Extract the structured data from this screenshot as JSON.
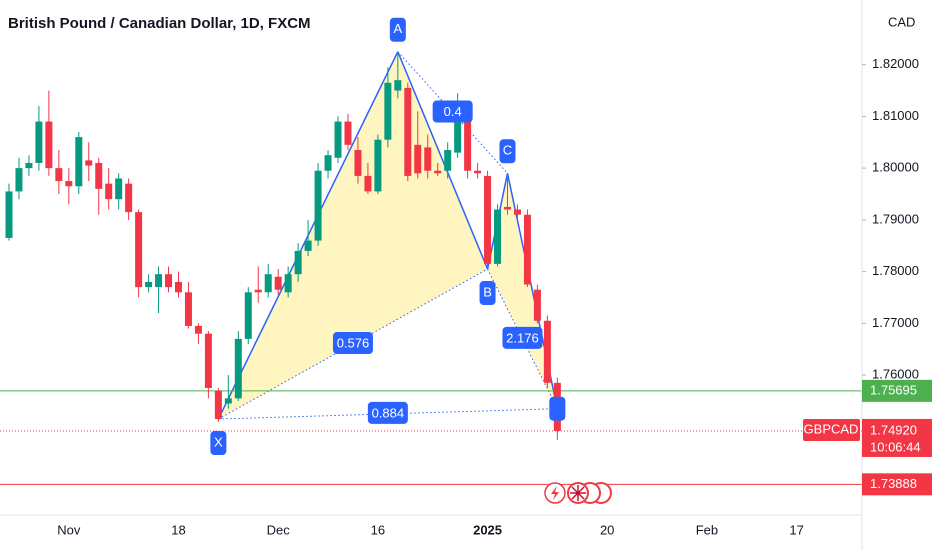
{
  "chart_data": {
    "type": "candlestick",
    "title": "British Pound / Canadian Dollar, 1D, FXCM",
    "currency": "CAD",
    "up_color": "#089981",
    "down_color": "#f23645",
    "categories": [
      null,
      null,
      null,
      null,
      null,
      null,
      "Nov",
      null,
      null,
      null,
      null,
      null,
      null,
      null,
      null,
      null,
      null,
      "18",
      null,
      null,
      null,
      null,
      null,
      null,
      null,
      null,
      null,
      "Dec",
      null,
      null,
      null,
      null,
      null,
      null,
      null,
      null,
      null,
      "16",
      null,
      null,
      null,
      null,
      null,
      null,
      null,
      null,
      null,
      null,
      "2025",
      null,
      null,
      null,
      null,
      null,
      null,
      null,
      null,
      null,
      null,
      null,
      "20",
      null,
      null,
      null,
      null,
      null,
      null,
      null,
      null,
      null,
      "Feb",
      null,
      null,
      null,
      null,
      null,
      null,
      null,
      null,
      "17"
    ],
    "open": [
      1.7865,
      1.7955,
      1.8,
      1.801,
      1.809,
      1.8,
      1.7975,
      1.7965,
      1.8015,
      1.801,
      1.797,
      1.794,
      1.797,
      1.7915,
      1.777,
      1.777,
      1.7795,
      1.778,
      1.776,
      1.7695,
      1.768,
      1.757,
      1.7545,
      1.7555,
      1.767,
      1.7765,
      1.776,
      1.779,
      1.776,
      1.7795,
      1.784,
      1.786,
      1.7995,
      1.802,
      1.809,
      1.8035,
      1.7985,
      1.7955,
      1.8055,
      1.815,
      1.8155,
      1.8045,
      1.804,
      1.7995,
      1.7995,
      1.803,
      1.8115,
      1.7995,
      1.7985,
      1.7815,
      1.7925,
      1.792,
      1.791,
      1.7765,
      1.7705,
      1.7585,
      null,
      null,
      null,
      null,
      null,
      null,
      null,
      null,
      null,
      null,
      null,
      null,
      null,
      null,
      null,
      null,
      null,
      null,
      null,
      null,
      null,
      null,
      null,
      null
    ],
    "high": [
      1.797,
      1.802,
      1.8025,
      1.812,
      1.815,
      1.8035,
      1.8,
      1.807,
      1.805,
      1.802,
      1.8,
      1.799,
      1.798,
      1.792,
      1.7795,
      1.781,
      1.781,
      1.78,
      1.778,
      1.77,
      1.7685,
      1.7575,
      1.76,
      1.7685,
      1.777,
      1.781,
      1.7815,
      1.7805,
      1.781,
      1.7855,
      1.79,
      1.801,
      1.8035,
      1.81,
      1.8105,
      1.806,
      1.801,
      1.8065,
      1.8195,
      1.8225,
      1.8165,
      1.811,
      1.8065,
      1.801,
      1.805,
      1.8145,
      1.813,
      1.801,
      1.7995,
      1.793,
      1.799,
      1.793,
      1.792,
      1.7775,
      1.7715,
      1.7595,
      null,
      null,
      null,
      null,
      null,
      null,
      null,
      null,
      null,
      null,
      null,
      null,
      null,
      null,
      null,
      null,
      null,
      null,
      null,
      null,
      null,
      null,
      null,
      null
    ],
    "low": [
      1.786,
      1.794,
      1.7985,
      1.7995,
      1.7985,
      1.795,
      1.793,
      1.795,
      1.7975,
      1.791,
      1.792,
      1.792,
      1.79,
      1.775,
      1.776,
      1.772,
      1.776,
      1.775,
      1.769,
      1.766,
      1.7555,
      1.751,
      1.7535,
      1.755,
      1.766,
      1.774,
      1.775,
      1.7755,
      1.775,
      1.778,
      1.783,
      1.785,
      1.798,
      1.801,
      1.8035,
      1.797,
      1.795,
      1.795,
      1.804,
      1.8135,
      1.7975,
      1.798,
      1.798,
      1.7985,
      1.798,
      1.802,
      1.798,
      1.798,
      1.7805,
      1.781,
      1.791,
      1.79,
      1.777,
      1.77,
      1.7575,
      1.7475,
      null,
      null,
      null,
      null,
      null,
      null,
      null,
      null,
      null,
      null,
      null,
      null,
      null,
      null,
      null,
      null,
      null,
      null,
      null,
      null,
      null,
      null,
      null,
      null
    ],
    "close": [
      1.7955,
      1.8,
      1.801,
      1.809,
      1.8,
      1.7975,
      1.7965,
      1.806,
      1.8005,
      1.796,
      1.794,
      1.798,
      1.7915,
      1.777,
      1.778,
      1.7795,
      1.777,
      1.776,
      1.7695,
      1.768,
      1.7575,
      1.7515,
      1.7555,
      1.767,
      1.776,
      1.776,
      1.7795,
      1.7765,
      1.7795,
      1.784,
      1.786,
      1.7995,
      1.8025,
      1.809,
      1.8045,
      1.7985,
      1.7955,
      1.8055,
      1.8165,
      1.817,
      1.7985,
      1.799,
      1.7995,
      1.799,
      1.8035,
      1.811,
      1.7995,
      1.799,
      1.7815,
      1.792,
      1.792,
      1.791,
      1.7775,
      1.7705,
      1.7585,
      1.7492,
      null,
      null,
      null,
      null,
      null,
      null,
      null,
      null,
      null,
      null,
      null,
      null,
      null,
      null,
      null,
      null,
      null,
      null,
      null,
      null,
      null,
      null,
      null,
      null
    ],
    "ylim": [
      1.7345,
      1.8325
    ],
    "yticks": [
      {
        "value": 1.82,
        "label": "1.82000"
      },
      {
        "value": 1.81,
        "label": "1.81000"
      },
      {
        "value": 1.8,
        "label": "1.80000"
      },
      {
        "value": 1.79,
        "label": "1.79000"
      },
      {
        "value": 1.78,
        "label": "1.78000"
      },
      {
        "value": 1.77,
        "label": "1.77000"
      },
      {
        "value": 1.76,
        "label": "1.76000"
      }
    ],
    "price_lines": [
      {
        "value": 1.75695,
        "label": "1.75695",
        "color": "#4caf50"
      },
      {
        "value": 1.7492,
        "label": "1.74920",
        "name": "GBPCAD",
        "countdown": "10:06:44",
        "color": "#f23645",
        "style": "dotted"
      },
      {
        "value": 1.73888,
        "label": "1.73888",
        "color": "#f23645"
      }
    ],
    "pattern": {
      "color": "#2962ff",
      "fill": "#fff3b0",
      "points": [
        {
          "label": "X",
          "index": 21,
          "price": 1.7515
        },
        {
          "label": "A",
          "index": 39,
          "price": 1.8225
        },
        {
          "label": "B",
          "index": 48,
          "price": 1.7805
        },
        {
          "label": "C",
          "index": 50,
          "price": 1.799
        },
        {
          "index": 55,
          "price": 1.7535
        }
      ],
      "ratios": [
        {
          "value": 0.576,
          "from": 0,
          "to": 2
        },
        {
          "value": 0.884,
          "from": 0,
          "to": 4
        },
        {
          "value": 0.4,
          "from": 1,
          "to": 3
        },
        {
          "value": 2.176,
          "from": 2,
          "to": 4
        }
      ]
    }
  }
}
